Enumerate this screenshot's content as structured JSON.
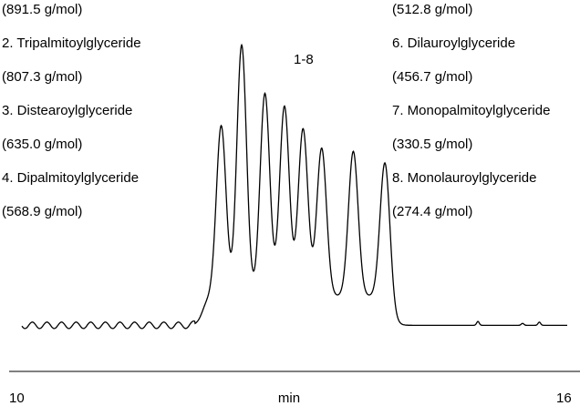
{
  "chart_data": {
    "type": "line",
    "title": "",
    "xlabel": "min",
    "ylabel": "",
    "xlim": [
      10,
      16
    ],
    "tick_labels": [
      "10",
      "16"
    ],
    "peak_group_label": "1-8",
    "legend_left": [
      "(891.5 g/mol)",
      "2. Tripalmitoylglyceride",
      "(807.3 g/mol)",
      "3. Distearoylglyceride",
      "(635.0 g/mol)",
      "4. Dipalmitoylglyceride",
      "(568.9 g/mol)"
    ],
    "legend_right": [
      "(512.8 g/mol)",
      "6. Dilauroylglyceride",
      "(456.7 g/mol)",
      "7. Monopalmitoylglyceride",
      "(330.5 g/mol)",
      "8. Monolauroylglyceride",
      "(274.4 g/mol)"
    ],
    "baseline": 0.03,
    "peaks": [
      {
        "x": 12.28,
        "height": 0.73
      },
      {
        "x": 12.5,
        "height": 0.98
      },
      {
        "x": 12.75,
        "height": 0.83
      },
      {
        "x": 12.96,
        "height": 0.79
      },
      {
        "x": 13.16,
        "height": 0.72
      },
      {
        "x": 13.36,
        "height": 0.66
      },
      {
        "x": 13.7,
        "height": 0.65
      },
      {
        "x": 14.04,
        "height": 0.62
      }
    ],
    "grid": false
  }
}
